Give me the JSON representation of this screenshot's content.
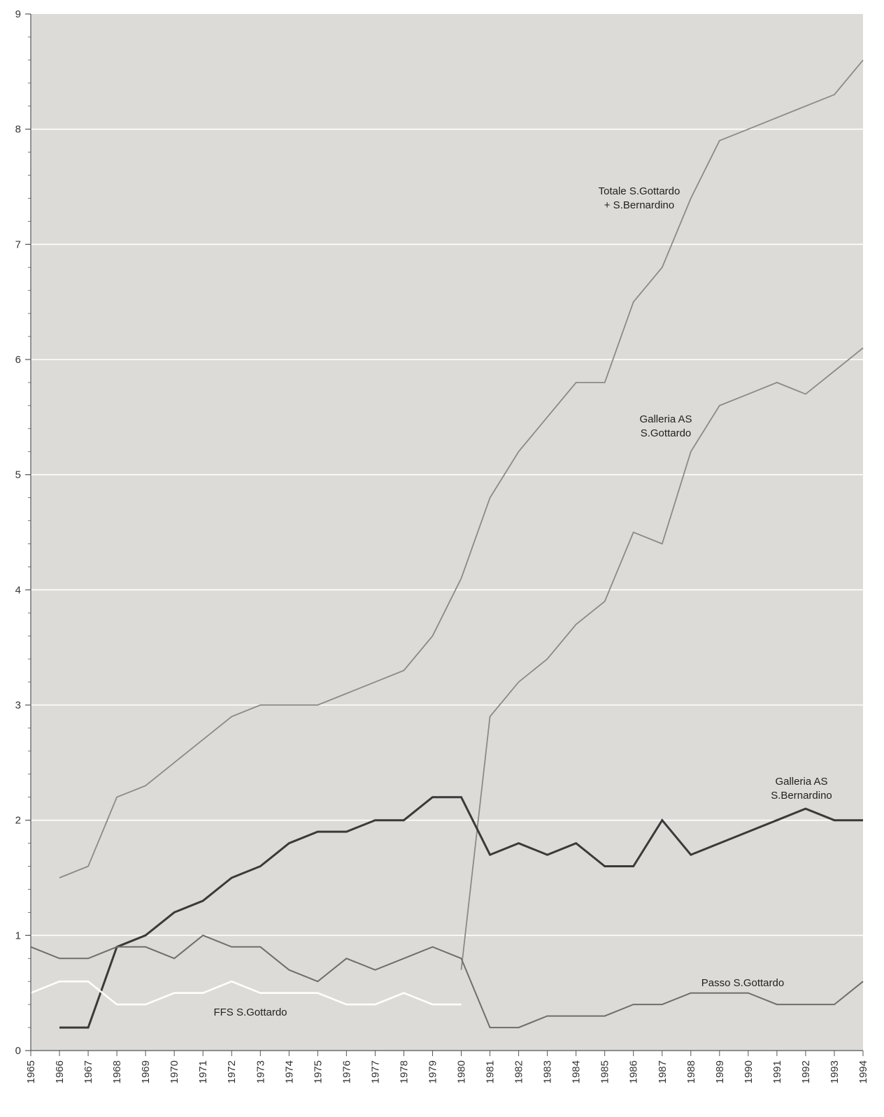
{
  "chart_data": {
    "type": "line",
    "title": "",
    "xlabel": "",
    "ylabel": "",
    "x": [
      1965,
      1966,
      1967,
      1968,
      1969,
      1970,
      1971,
      1972,
      1973,
      1974,
      1975,
      1976,
      1977,
      1978,
      1979,
      1980,
      1981,
      1982,
      1983,
      1984,
      1985,
      1986,
      1987,
      1988,
      1989,
      1990,
      1991,
      1992,
      1993,
      1994
    ],
    "x_tick_labels": [
      "1965",
      "1966",
      "1967",
      "1968",
      "1969",
      "1970",
      "1971",
      "1972",
      "1973",
      "1974",
      "1975",
      "1976",
      "1977",
      "1978",
      "1979",
      "1980",
      "1981",
      "1982",
      "1983",
      "1984",
      "1985",
      "1986",
      "1987",
      "1988",
      "1989",
      "1990",
      "1991",
      "1992",
      "1993",
      "1994"
    ],
    "ylim": [
      0,
      9
    ],
    "y_tick_labels": [
      "0",
      "1",
      "2",
      "3",
      "4",
      "5",
      "6",
      "7",
      "8",
      "9"
    ],
    "grid": true,
    "legend": "none (inline labels)",
    "series": [
      {
        "name": "Totale S.Gottardo + S.Bernardino",
        "label_lines": [
          "Totale S.Gottardo",
          "+ S.Bernardino"
        ],
        "color": "#8a8a8a",
        "values": [
          null,
          1.5,
          1.6,
          2.2,
          2.3,
          2.5,
          2.7,
          2.9,
          3.0,
          3.0,
          3.0,
          3.1,
          3.2,
          3.3,
          3.6,
          4.1,
          4.8,
          5.2,
          5.5,
          5.8,
          5.8,
          6.5,
          6.8,
          7.4,
          7.9,
          8.0,
          8.1,
          8.2,
          8.3,
          8.6
        ]
      },
      {
        "name": "Galleria AS S.Gottardo",
        "label_lines": [
          "Galleria AS",
          "S.Gottardo"
        ],
        "color": "#8a8a8a",
        "values": [
          null,
          null,
          null,
          null,
          null,
          null,
          null,
          null,
          null,
          null,
          null,
          null,
          null,
          null,
          null,
          0.7,
          2.9,
          3.2,
          3.4,
          3.7,
          3.9,
          4.5,
          4.4,
          5.2,
          5.6,
          5.7,
          5.8,
          5.7,
          5.9,
          6.1
        ]
      },
      {
        "name": "Galleria AS S.Bernardino",
        "label_lines": [
          "Galleria AS",
          "S.Bernardino"
        ],
        "color": "#3a3a3a",
        "values": [
          null,
          0.2,
          0.2,
          0.9,
          1.0,
          1.2,
          1.3,
          1.5,
          1.6,
          1.8,
          1.9,
          1.9,
          2.0,
          2.0,
          2.2,
          2.2,
          1.7,
          1.8,
          1.7,
          1.8,
          1.6,
          1.6,
          2.0,
          1.7,
          1.8,
          1.9,
          2.0,
          2.1,
          2.0,
          2.0
        ]
      },
      {
        "name": "Passo S.Gottardo",
        "label_lines": [
          "Passo S.Gottardo"
        ],
        "color": "#6e6e6e",
        "values": [
          0.9,
          0.8,
          0.8,
          0.9,
          0.9,
          0.8,
          1.0,
          0.9,
          0.9,
          0.7,
          0.6,
          0.8,
          0.7,
          0.8,
          0.9,
          0.8,
          0.2,
          0.2,
          0.3,
          0.3,
          0.3,
          0.4,
          0.4,
          0.5,
          0.5,
          0.5,
          0.4,
          0.4,
          0.4,
          0.6
        ]
      },
      {
        "name": "FFS S.Gottardo",
        "label_lines": [
          "FFS S.Gottardo"
        ],
        "color": "#ffffff",
        "values": [
          0.5,
          0.6,
          0.6,
          0.4,
          0.4,
          0.5,
          0.5,
          0.6,
          0.5,
          0.5,
          0.5,
          0.4,
          0.4,
          0.5,
          0.4,
          0.4,
          null,
          null,
          null,
          null,
          null,
          null,
          null,
          null,
          null,
          null,
          null,
          null,
          null,
          null
        ]
      }
    ],
    "colors": {
      "plot_background": "#dddbd7",
      "gridline": "#ffffff",
      "axis": "#555555"
    }
  }
}
